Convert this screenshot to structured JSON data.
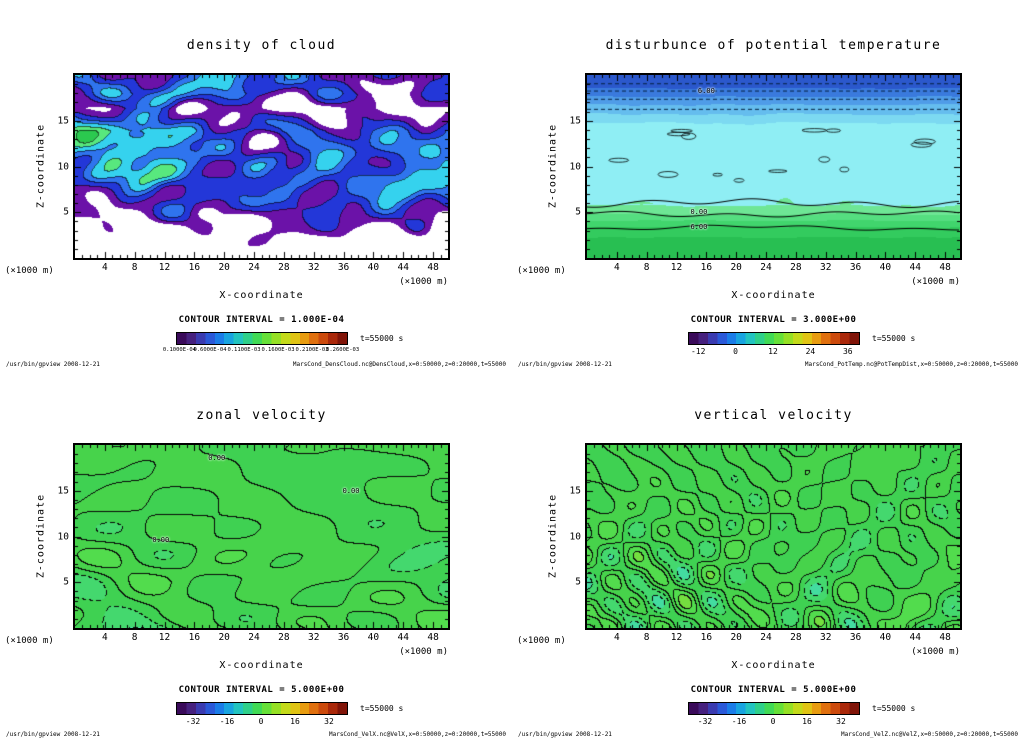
{
  "window": {
    "background": "#ffffff"
  },
  "palette": [
    "#3a0a5a",
    "#46207e",
    "#3a3ab0",
    "#2a58d8",
    "#1a7ce8",
    "#18a4e0",
    "#22c4c0",
    "#2ed08a",
    "#40da55",
    "#66e038",
    "#96e024",
    "#c4da1a",
    "#e0c414",
    "#e89c10",
    "#e0700e",
    "#cc4a0c",
    "#aa280a",
    "#801408"
  ],
  "chart_data": [
    {
      "type": "contour",
      "title": "density of cloud",
      "xlabel": "X-coordinate",
      "ylabel": "Z-coordinate",
      "x_unit_label": "(×1000 m)",
      "y_unit_label": "(×1000 m)",
      "x_range": [
        0,
        50
      ],
      "y_range": [
        0,
        20
      ],
      "x_ticks": [
        4,
        8,
        12,
        16,
        20,
        24,
        28,
        32,
        36,
        40,
        44,
        48
      ],
      "y_ticks": [
        5,
        10,
        15
      ],
      "contour_interval": 0.0001,
      "contour_interval_label": "CONTOUR INTERVAL = 1.000E-04",
      "time_label": "t=55000 s",
      "colorbar_ticks": [
        {
          "label": "0.1000E-04",
          "pos": 0.02
        },
        {
          "label": "0.6000E-04",
          "pos": 0.2
        },
        {
          "label": "0.1100E-03",
          "pos": 0.4
        },
        {
          "label": "0.1600E-03",
          "pos": 0.6
        },
        {
          "label": "0.2100E-03",
          "pos": 0.8
        },
        {
          "label": "0.2600E-03",
          "pos": 0.98
        }
      ],
      "contour_labels": [],
      "footer_left": "/usr/bin/gpview  2008-12-21",
      "footer_right": "MarsCond_DensCloud.nc@DensCloud,x=0:50000,z=0:20000,t=55000",
      "field_summary": "cloud-density patches (purple/blue/cyan/green) between z≈4 and 19 km on a white background"
    },
    {
      "type": "contour",
      "title": "disturbunce of potential temperature",
      "xlabel": "X-coordinate",
      "ylabel": "Z-coordinate",
      "x_unit_label": "(×1000 m)",
      "y_unit_label": "(×1000 m)",
      "x_range": [
        0,
        50
      ],
      "y_range": [
        0,
        20
      ],
      "x_ticks": [
        4,
        8,
        12,
        16,
        20,
        24,
        28,
        32,
        36,
        40,
        44,
        48
      ],
      "y_ticks": [
        5,
        10,
        15
      ],
      "contour_interval": 3.0,
      "contour_interval_label": "CONTOUR INTERVAL = 3.000E+00",
      "time_label": "t=55000 s",
      "colorbar_ticks": [
        {
          "label": "-12",
          "pos": 0.06
        },
        {
          "label": "0",
          "pos": 0.28
        },
        {
          "label": "12",
          "pos": 0.5
        },
        {
          "label": "24",
          "pos": 0.72
        },
        {
          "label": "36",
          "pos": 0.94
        }
      ],
      "contour_labels": [
        {
          "text": "6.00",
          "x": 0.32,
          "y": 0.09
        },
        {
          "text": "0.00",
          "x": 0.3,
          "y": 0.75
        },
        {
          "text": "6.00",
          "x": 0.3,
          "y": 0.83
        }
      ],
      "footer_left": "/usr/bin/gpview  2008-12-21",
      "footer_right": "MarsCond_PotTemp.nc@PotTempDist,x=0:50000,z=0:20000,t=55000",
      "field_summary": "horizontally banded field: dark blue dashed-contour band at top, uniform light cyan middle, green band below z≈5 km with labelled contours"
    },
    {
      "type": "contour",
      "title": "zonal velocity",
      "xlabel": "X-coordinate",
      "ylabel": "Z-coordinate",
      "x_unit_label": "(×1000 m)",
      "y_unit_label": "(×1000 m)",
      "x_range": [
        0,
        50
      ],
      "y_range": [
        0,
        20
      ],
      "x_ticks": [
        4,
        8,
        12,
        16,
        20,
        24,
        28,
        32,
        36,
        40,
        44,
        48
      ],
      "y_ticks": [
        5,
        10,
        15
      ],
      "contour_interval": 5.0,
      "contour_interval_label": "CONTOUR INTERVAL = 5.000E+00",
      "time_label": "t=55000 s",
      "colorbar_ticks": [
        {
          "label": "-32",
          "pos": 0.1
        },
        {
          "label": "-16",
          "pos": 0.3
        },
        {
          "label": "0",
          "pos": 0.5
        },
        {
          "label": "16",
          "pos": 0.7
        },
        {
          "label": "32",
          "pos": 0.9
        }
      ],
      "contour_labels": [
        {
          "text": "0.00",
          "x": 0.38,
          "y": 0.07
        },
        {
          "text": "0.00",
          "x": 0.74,
          "y": 0.25
        },
        {
          "text": "0.00",
          "x": 0.23,
          "y": 0.52
        }
      ],
      "footer_left": "/usr/bin/gpview  2008-12-21",
      "footer_right": "MarsCond_VelX.nc@VelX,x=0:50000,z=0:20000,t=55000",
      "field_summary": "green field, sparse 0.00 contours aloft, dense nested solid/dashed contours with cyan and yellow cores near the surface"
    },
    {
      "type": "contour",
      "title": "vertical velocity",
      "xlabel": "X-coordinate",
      "ylabel": "Z-coordinate",
      "x_unit_label": "(×1000 m)",
      "y_unit_label": "(×1000 m)",
      "x_range": [
        0,
        50
      ],
      "y_range": [
        0,
        20
      ],
      "x_ticks": [
        4,
        8,
        12,
        16,
        20,
        24,
        28,
        32,
        36,
        40,
        44,
        48
      ],
      "y_ticks": [
        5,
        10,
        15
      ],
      "contour_interval": 5.0,
      "contour_interval_label": "CONTOUR INTERVAL = 5.000E+00",
      "time_label": "t=55000 s",
      "colorbar_ticks": [
        {
          "label": "-32",
          "pos": 0.1
        },
        {
          "label": "-16",
          "pos": 0.3
        },
        {
          "label": "0",
          "pos": 0.5
        },
        {
          "label": "16",
          "pos": 0.7
        },
        {
          "label": "32",
          "pos": 0.9
        }
      ],
      "contour_labels": [],
      "footer_left": "/usr/bin/gpview  2008-12-21",
      "footer_right": "MarsCond_VelZ.nc@VelZ,x=0:50000,z=0:20000,t=55000",
      "field_summary": "green field with dense vertically streaked solid/dashed contour cells, yellow updraft cores near the surface"
    }
  ]
}
